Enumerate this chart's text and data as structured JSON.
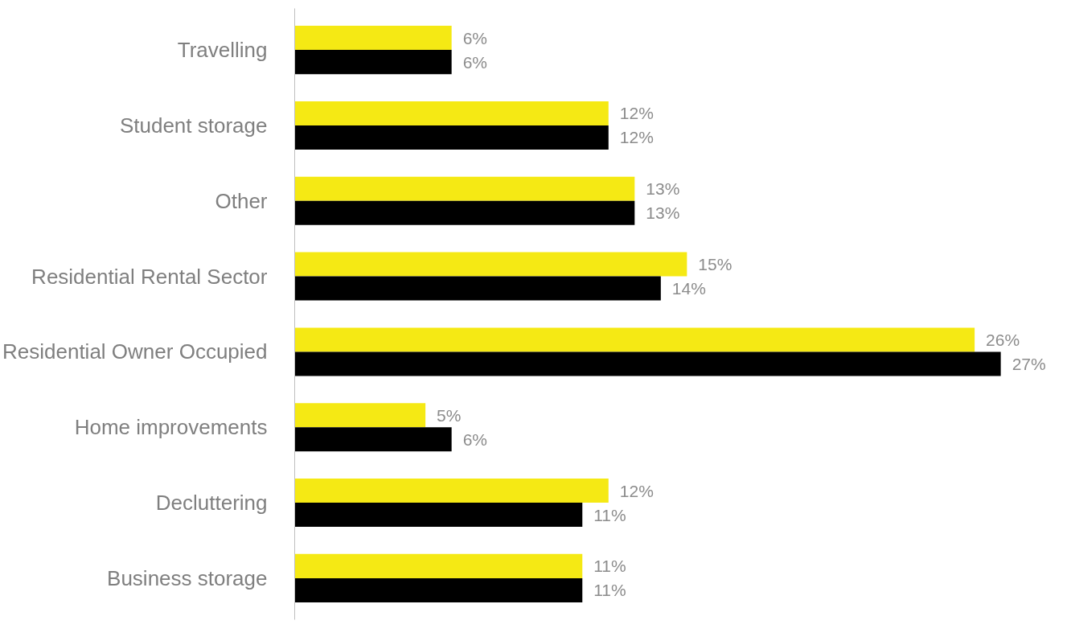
{
  "chart_data": {
    "type": "bar",
    "orientation": "horizontal",
    "categories": [
      "Travelling",
      "Student storage",
      "Other",
      "Residential Rental Sector",
      "Residential Owner Occupied",
      "Home improvements",
      "Decluttering",
      "Business storage"
    ],
    "series": [
      {
        "color": "#f5e914",
        "values": [
          6,
          12,
          13,
          15,
          26,
          5,
          12,
          11
        ],
        "value_labels": [
          "6%",
          "12%",
          "13%",
          "15%",
          "26%",
          "5%",
          "12%",
          "11%"
        ]
      },
      {
        "color": "#000000",
        "values": [
          6,
          12,
          13,
          14,
          27,
          6,
          11,
          11
        ],
        "value_labels": [
          "6%",
          "12%",
          "13%",
          "14%",
          "27%",
          "6%",
          "11%",
          "11%"
        ]
      }
    ],
    "tick_labels": "y",
    "grid": false
  }
}
